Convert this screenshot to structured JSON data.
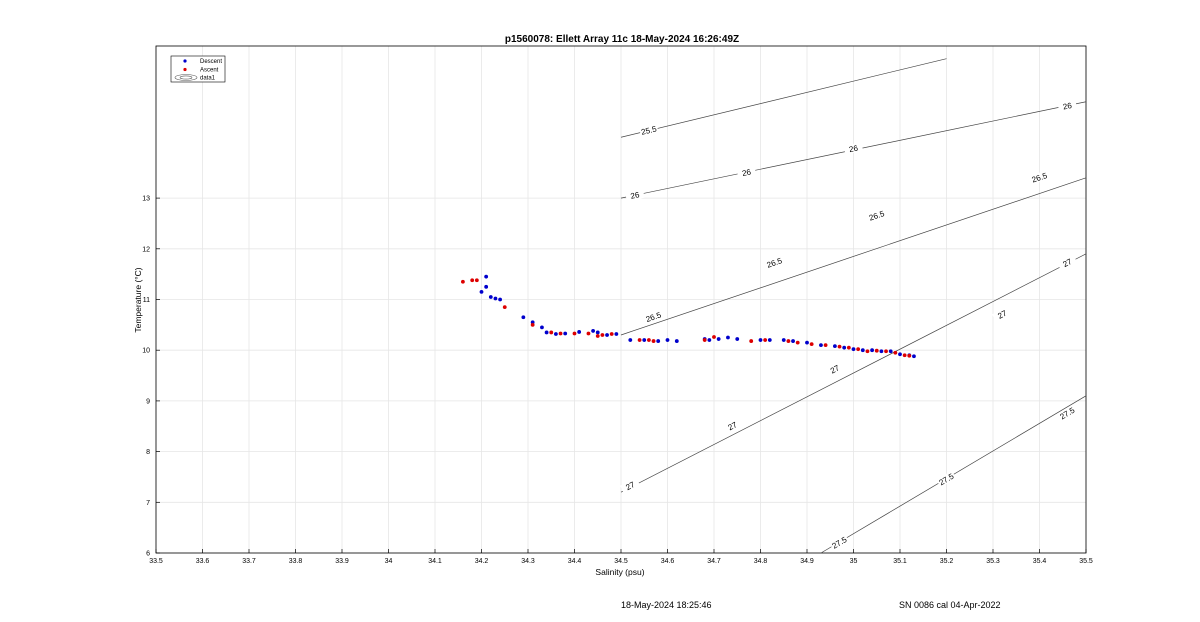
{
  "chart_data": {
    "type": "scatter",
    "title": "p1560078: Ellett Array 11c 18-May-2024 16:26:49Z",
    "xlabel": "Salinity (psu)",
    "ylabel": "Temperature (°C)",
    "xlim": [
      33.5,
      35.5
    ],
    "ylim": [
      6,
      16
    ],
    "xticks": [
      33.5,
      33.6,
      33.7,
      33.8,
      33.9,
      34,
      34.1,
      34.2,
      34.3,
      34.4,
      34.5,
      34.6,
      34.7,
      34.8,
      34.9,
      35,
      35.1,
      35.2,
      35.3,
      35.4,
      35.5
    ],
    "yticks": [
      6,
      7,
      8,
      9,
      10,
      11,
      12,
      13
    ],
    "grid": true,
    "legend": {
      "placement": "top-left",
      "entries": [
        "Descent",
        "Ascent",
        "data1"
      ]
    },
    "series": [
      {
        "name": "Descent",
        "color": "#0000cc",
        "points": [
          [
            34.21,
            11.45
          ],
          [
            34.2,
            11.15
          ],
          [
            34.21,
            11.25
          ],
          [
            34.22,
            11.05
          ],
          [
            34.23,
            11.02
          ],
          [
            34.24,
            11.0
          ],
          [
            34.29,
            10.65
          ],
          [
            34.31,
            10.55
          ],
          [
            34.33,
            10.45
          ],
          [
            34.34,
            10.35
          ],
          [
            34.36,
            10.32
          ],
          [
            34.38,
            10.33
          ],
          [
            34.41,
            10.36
          ],
          [
            34.44,
            10.38
          ],
          [
            34.45,
            10.35
          ],
          [
            34.47,
            10.3
          ],
          [
            34.49,
            10.32
          ],
          [
            34.52,
            10.2
          ],
          [
            34.55,
            10.2
          ],
          [
            34.58,
            10.18
          ],
          [
            34.6,
            10.2
          ],
          [
            34.62,
            10.18
          ],
          [
            34.68,
            10.22
          ],
          [
            34.69,
            10.2
          ],
          [
            34.71,
            10.22
          ],
          [
            34.73,
            10.25
          ],
          [
            34.75,
            10.22
          ],
          [
            34.8,
            10.2
          ],
          [
            34.82,
            10.2
          ],
          [
            34.85,
            10.2
          ],
          [
            34.87,
            10.18
          ],
          [
            34.9,
            10.15
          ],
          [
            34.93,
            10.1
          ],
          [
            34.96,
            10.08
          ],
          [
            34.98,
            10.05
          ],
          [
            35.0,
            10.02
          ],
          [
            35.02,
            10.0
          ],
          [
            35.04,
            10.0
          ],
          [
            35.06,
            9.98
          ],
          [
            35.08,
            9.98
          ],
          [
            35.1,
            9.92
          ],
          [
            35.12,
            9.9
          ],
          [
            35.13,
            9.88
          ]
        ]
      },
      {
        "name": "Ascent",
        "color": "#dd0000",
        "points": [
          [
            34.16,
            11.35
          ],
          [
            34.18,
            11.38
          ],
          [
            34.19,
            11.38
          ],
          [
            34.25,
            10.85
          ],
          [
            34.31,
            10.5
          ],
          [
            34.35,
            10.35
          ],
          [
            34.37,
            10.33
          ],
          [
            34.4,
            10.33
          ],
          [
            34.43,
            10.33
          ],
          [
            34.45,
            10.28
          ],
          [
            34.46,
            10.3
          ],
          [
            34.48,
            10.32
          ],
          [
            34.54,
            10.2
          ],
          [
            34.56,
            10.2
          ],
          [
            34.57,
            10.18
          ],
          [
            34.68,
            10.2
          ],
          [
            34.7,
            10.26
          ],
          [
            34.78,
            10.18
          ],
          [
            34.81,
            10.2
          ],
          [
            34.86,
            10.18
          ],
          [
            34.88,
            10.15
          ],
          [
            34.91,
            10.12
          ],
          [
            34.94,
            10.1
          ],
          [
            34.97,
            10.07
          ],
          [
            34.99,
            10.05
          ],
          [
            35.01,
            10.02
          ],
          [
            35.03,
            9.98
          ],
          [
            35.05,
            9.99
          ],
          [
            35.07,
            9.98
          ],
          [
            35.09,
            9.95
          ],
          [
            35.11,
            9.9
          ],
          [
            35.12,
            9.89
          ]
        ]
      }
    ],
    "contours": [
      {
        "label": "25.5",
        "color": "#444444",
        "points": [
          [
            34.5,
            14.2
          ],
          [
            35.2,
            15.75
          ]
        ],
        "label_positions": [
          [
            34.56,
            14.33
          ]
        ]
      },
      {
        "label": "26",
        "color": "#444444",
        "points": [
          [
            34.5,
            13.0
          ],
          [
            35.5,
            14.9
          ]
        ],
        "label_positions": [
          [
            34.53,
            13.05
          ],
          [
            34.77,
            13.5
          ],
          [
            35.0,
            13.97
          ],
          [
            35.46,
            14.81
          ]
        ]
      },
      {
        "label": "26.5",
        "color": "#444444",
        "points": [
          [
            34.5,
            10.3
          ],
          [
            35.5,
            13.4
          ]
        ],
        "label_positions": [
          [
            34.57,
            10.65
          ],
          [
            34.83,
            11.72
          ],
          [
            35.05,
            12.65
          ],
          [
            35.4,
            13.4
          ]
        ]
      },
      {
        "label": "27",
        "color": "#444444",
        "points": [
          [
            34.5,
            7.2
          ],
          [
            35.5,
            11.9
          ]
        ],
        "label_positions": [
          [
            34.52,
            7.32
          ],
          [
            34.74,
            8.5
          ],
          [
            34.96,
            9.62
          ],
          [
            35.32,
            10.7
          ],
          [
            35.46,
            11.72
          ]
        ]
      },
      {
        "label": "27.5",
        "color": "#444444",
        "points": [
          [
            34.93,
            6.0
          ],
          [
            35.5,
            9.1
          ]
        ],
        "label_positions": [
          [
            34.97,
            6.2
          ],
          [
            35.2,
            7.45
          ],
          [
            35.46,
            8.75
          ]
        ]
      }
    ]
  },
  "footer": {
    "date": "18-May-2024 18:25:46",
    "calibration": "SN 0086 cal 04-Apr-2022"
  }
}
